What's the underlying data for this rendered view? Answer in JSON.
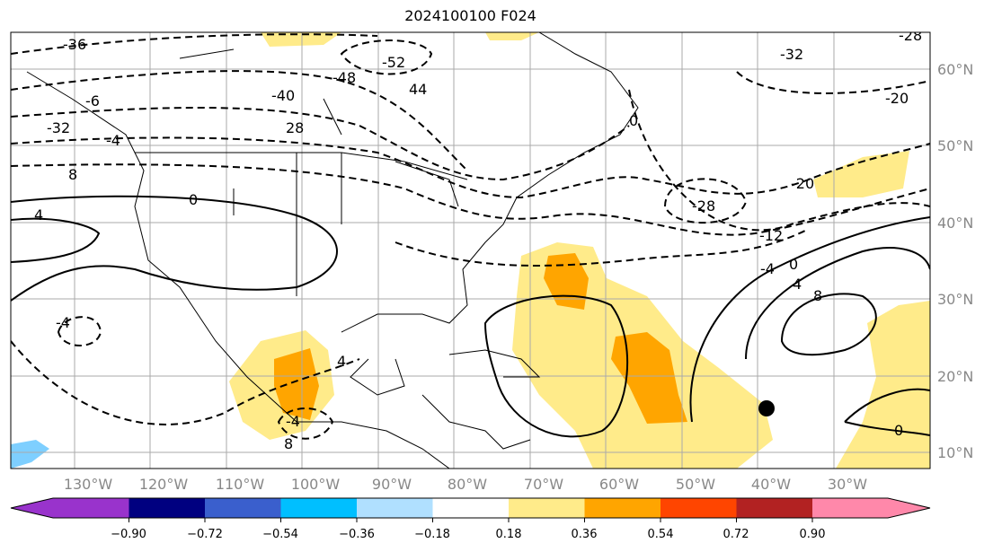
{
  "title": "2024100100 F024",
  "lat_labels": [
    "60°N",
    "50°N",
    "40°N",
    "30°N",
    "20°N",
    "10°N"
  ],
  "lon_labels": [
    "130°W",
    "120°W",
    "110°W",
    "100°W",
    "90°W",
    "80°W",
    "70°W",
    "60°W",
    "50°W",
    "40°W",
    "30°W"
  ],
  "contour_labels": [
    "-36",
    "-6",
    "-32",
    "-4",
    "8",
    "-40",
    "28",
    "-48",
    "-52",
    "44",
    "-32",
    "-28",
    "-20",
    "-28",
    "-20",
    "-12",
    "-4",
    "0",
    "4",
    "8",
    "0",
    "4",
    "0",
    "4",
    "-4",
    "-4",
    "8",
    "0"
  ],
  "colorbar": {
    "colors": [
      "#9933cc",
      "#000080",
      "#3a5fcd",
      "#00bfff",
      "#b0e0ff",
      "#ffffff",
      "#ffeb8a",
      "#ffa500",
      "#ff4500",
      "#b22222",
      "#ff88aa"
    ],
    "tick_labels": [
      "−0.90",
      "−0.72",
      "−0.54",
      "−0.36",
      "−0.18",
      "0.18",
      "0.36",
      "0.54",
      "0.72",
      "0.90"
    ]
  },
  "marker": "storm-center-dot"
}
